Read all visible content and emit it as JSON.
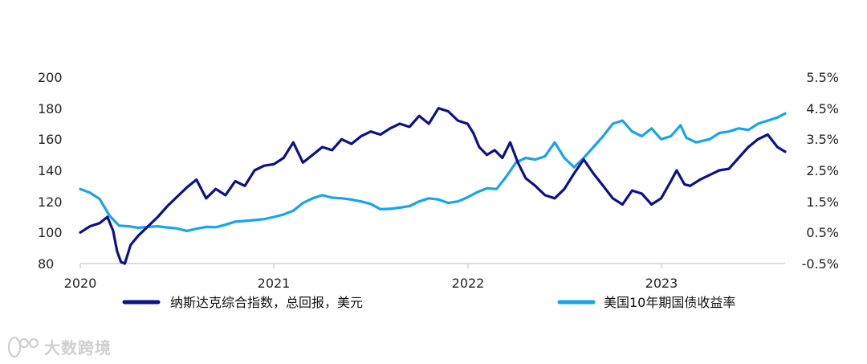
{
  "watermark": {
    "text": "大数跨境"
  },
  "chart_data": {
    "type": "line",
    "x_ticks": [
      "2020",
      "2021",
      "2022",
      "2023"
    ],
    "y_left_ticks": [
      "80",
      "100",
      "120",
      "140",
      "160",
      "180",
      "200"
    ],
    "y_right_ticks": [
      "-0.5%",
      "0.5%",
      "1.5%",
      "2.5%",
      "3.5%",
      "4.5%",
      "5.5%"
    ],
    "ylim_left": [
      80,
      200
    ],
    "ylim_right": [
      -0.5,
      5.5
    ],
    "xlim": [
      2020.0,
      2023.64
    ],
    "grid": false,
    "legend_position": "bottom",
    "series": [
      {
        "name": "纳斯达克综合指数，总回报，美元",
        "axis": "left",
        "color": "#0d1188",
        "points": [
          [
            2020.0,
            100
          ],
          [
            2020.05,
            104
          ],
          [
            2020.1,
            106
          ],
          [
            2020.14,
            110
          ],
          [
            2020.17,
            101
          ],
          [
            2020.19,
            88
          ],
          [
            2020.21,
            81
          ],
          [
            2020.23,
            80
          ],
          [
            2020.26,
            92
          ],
          [
            2020.3,
            98
          ],
          [
            2020.35,
            104
          ],
          [
            2020.4,
            110
          ],
          [
            2020.45,
            117
          ],
          [
            2020.5,
            123
          ],
          [
            2020.55,
            129
          ],
          [
            2020.6,
            134
          ],
          [
            2020.65,
            122
          ],
          [
            2020.7,
            128
          ],
          [
            2020.75,
            124
          ],
          [
            2020.8,
            133
          ],
          [
            2020.85,
            130
          ],
          [
            2020.9,
            140
          ],
          [
            2020.95,
            143
          ],
          [
            2021.0,
            144
          ],
          [
            2021.05,
            148
          ],
          [
            2021.1,
            158
          ],
          [
            2021.15,
            145
          ],
          [
            2021.2,
            150
          ],
          [
            2021.25,
            155
          ],
          [
            2021.3,
            153
          ],
          [
            2021.35,
            160
          ],
          [
            2021.4,
            157
          ],
          [
            2021.45,
            162
          ],
          [
            2021.5,
            165
          ],
          [
            2021.55,
            163
          ],
          [
            2021.6,
            167
          ],
          [
            2021.65,
            170
          ],
          [
            2021.7,
            168
          ],
          [
            2021.75,
            175
          ],
          [
            2021.8,
            170
          ],
          [
            2021.85,
            180
          ],
          [
            2021.9,
            178
          ],
          [
            2021.95,
            172
          ],
          [
            2022.0,
            170
          ],
          [
            2022.03,
            164
          ],
          [
            2022.06,
            155
          ],
          [
            2022.1,
            150
          ],
          [
            2022.14,
            153
          ],
          [
            2022.18,
            148
          ],
          [
            2022.22,
            158
          ],
          [
            2022.26,
            145
          ],
          [
            2022.3,
            135
          ],
          [
            2022.35,
            130
          ],
          [
            2022.4,
            124
          ],
          [
            2022.45,
            122
          ],
          [
            2022.5,
            128
          ],
          [
            2022.55,
            138
          ],
          [
            2022.6,
            147
          ],
          [
            2022.65,
            138
          ],
          [
            2022.7,
            130
          ],
          [
            2022.75,
            122
          ],
          [
            2022.8,
            118
          ],
          [
            2022.85,
            127
          ],
          [
            2022.9,
            125
          ],
          [
            2022.95,
            118
          ],
          [
            2023.0,
            122
          ],
          [
            2023.05,
            133
          ],
          [
            2023.08,
            140
          ],
          [
            2023.12,
            131
          ],
          [
            2023.15,
            130
          ],
          [
            2023.2,
            134
          ],
          [
            2023.25,
            137
          ],
          [
            2023.3,
            140
          ],
          [
            2023.35,
            141
          ],
          [
            2023.4,
            148
          ],
          [
            2023.45,
            155
          ],
          [
            2023.5,
            160
          ],
          [
            2023.55,
            163
          ],
          [
            2023.6,
            155
          ],
          [
            2023.64,
            152
          ]
        ]
      },
      {
        "name": "美国10年期国债收益率",
        "axis": "right",
        "color": "#17a4ef",
        "points": [
          [
            2020.0,
            1.9
          ],
          [
            2020.05,
            1.78
          ],
          [
            2020.1,
            1.58
          ],
          [
            2020.15,
            1.05
          ],
          [
            2020.2,
            0.72
          ],
          [
            2020.25,
            0.7
          ],
          [
            2020.3,
            0.65
          ],
          [
            2020.35,
            0.68
          ],
          [
            2020.4,
            0.7
          ],
          [
            2020.45,
            0.66
          ],
          [
            2020.5,
            0.63
          ],
          [
            2020.55,
            0.55
          ],
          [
            2020.6,
            0.62
          ],
          [
            2020.65,
            0.68
          ],
          [
            2020.7,
            0.67
          ],
          [
            2020.75,
            0.75
          ],
          [
            2020.8,
            0.85
          ],
          [
            2020.85,
            0.87
          ],
          [
            2020.9,
            0.9
          ],
          [
            2020.95,
            0.93
          ],
          [
            2021.0,
            1.0
          ],
          [
            2021.05,
            1.08
          ],
          [
            2021.1,
            1.2
          ],
          [
            2021.15,
            1.45
          ],
          [
            2021.2,
            1.6
          ],
          [
            2021.25,
            1.7
          ],
          [
            2021.3,
            1.62
          ],
          [
            2021.35,
            1.6
          ],
          [
            2021.4,
            1.56
          ],
          [
            2021.45,
            1.5
          ],
          [
            2021.5,
            1.42
          ],
          [
            2021.55,
            1.25
          ],
          [
            2021.6,
            1.26
          ],
          [
            2021.65,
            1.3
          ],
          [
            2021.7,
            1.35
          ],
          [
            2021.75,
            1.5
          ],
          [
            2021.8,
            1.6
          ],
          [
            2021.85,
            1.56
          ],
          [
            2021.9,
            1.45
          ],
          [
            2021.95,
            1.5
          ],
          [
            2022.0,
            1.63
          ],
          [
            2022.05,
            1.8
          ],
          [
            2022.1,
            1.92
          ],
          [
            2022.15,
            1.9
          ],
          [
            2022.2,
            2.3
          ],
          [
            2022.25,
            2.75
          ],
          [
            2022.3,
            2.9
          ],
          [
            2022.35,
            2.85
          ],
          [
            2022.4,
            2.95
          ],
          [
            2022.45,
            3.4
          ],
          [
            2022.5,
            2.9
          ],
          [
            2022.55,
            2.6
          ],
          [
            2022.6,
            2.9
          ],
          [
            2022.65,
            3.25
          ],
          [
            2022.7,
            3.6
          ],
          [
            2022.75,
            4.0
          ],
          [
            2022.8,
            4.1
          ],
          [
            2022.85,
            3.75
          ],
          [
            2022.9,
            3.6
          ],
          [
            2022.95,
            3.85
          ],
          [
            2023.0,
            3.5
          ],
          [
            2023.05,
            3.6
          ],
          [
            2023.1,
            3.95
          ],
          [
            2023.13,
            3.55
          ],
          [
            2023.18,
            3.4
          ],
          [
            2023.25,
            3.5
          ],
          [
            2023.3,
            3.7
          ],
          [
            2023.35,
            3.75
          ],
          [
            2023.4,
            3.85
          ],
          [
            2023.45,
            3.8
          ],
          [
            2023.5,
            4.0
          ],
          [
            2023.55,
            4.1
          ],
          [
            2023.6,
            4.2
          ],
          [
            2023.64,
            4.33
          ]
        ]
      }
    ]
  }
}
